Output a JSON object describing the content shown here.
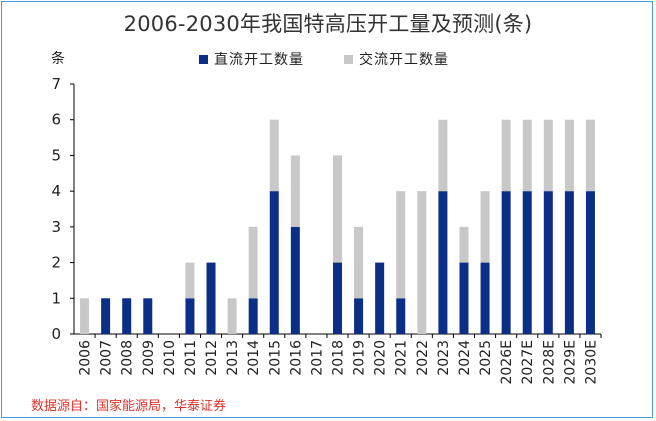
{
  "chart_data": {
    "type": "bar",
    "stacked": true,
    "title": "2006-2030年我国特高压开工量及预测(条)",
    "ylabel": "条",
    "xlabel": "",
    "ylim": [
      0,
      7
    ],
    "yticks": [
      0,
      1,
      2,
      3,
      4,
      5,
      6,
      7
    ],
    "grid": false,
    "legend_position": "top-center",
    "categories": [
      "2006",
      "2007",
      "2008",
      "2009",
      "2010",
      "2011",
      "2012",
      "2013",
      "2014",
      "2015",
      "2016",
      "2017",
      "2018",
      "2019",
      "2020",
      "2021",
      "2022",
      "2023",
      "2024",
      "2025",
      "2026E",
      "2027E",
      "2028E",
      "2029E",
      "2030E"
    ],
    "series": [
      {
        "name": "直流开工数量",
        "color": "#0b2f87",
        "values": [
          0,
          1,
          1,
          1,
          0,
          1,
          2,
          0,
          1,
          4,
          3,
          0,
          2,
          1,
          2,
          1,
          0,
          4,
          2,
          2,
          4,
          4,
          4,
          4,
          4
        ]
      },
      {
        "name": "交流开工数量",
        "color": "#c8c8c8",
        "values": [
          1,
          0,
          0,
          0,
          0,
          1,
          0,
          1,
          2,
          2,
          2,
          0,
          3,
          2,
          0,
          3,
          4,
          2,
          1,
          2,
          2,
          2,
          2,
          2,
          2
        ]
      }
    ]
  },
  "source_note": "数据源自：国家能源局，华泰证券",
  "colors": {
    "frame": "#4a9bd6",
    "source_text": "#e0312b"
  }
}
